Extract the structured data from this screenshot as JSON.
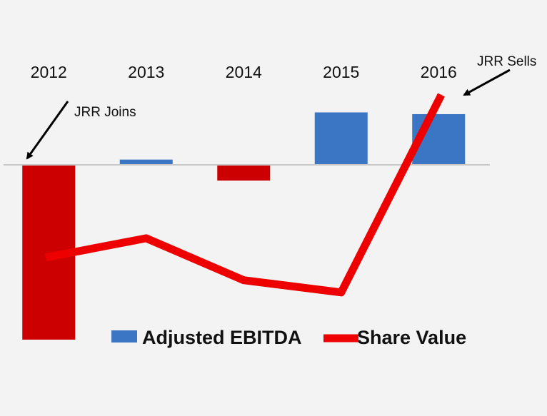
{
  "chart_data": {
    "type": "bar",
    "categories": [
      "2012",
      "2013",
      "2014",
      "2015",
      "2016"
    ],
    "series": [
      {
        "name": "Adjusted EBITDA",
        "chart_type": "bar",
        "values": [
          -10,
          0.3,
          -0.9,
          3.0,
          2.9
        ],
        "bar_colors": [
          "#cc0000",
          "#3a76c4",
          "#cc0000",
          "#3a76c4",
          "#3a76c4"
        ]
      },
      {
        "name": "Share Value",
        "chart_type": "line",
        "values": [
          -5.3,
          -4.2,
          -6.6,
          -7.3,
          4.0
        ],
        "color": "#ee0000"
      }
    ],
    "ylim": [
      -10,
      4
    ],
    "grid": false,
    "legend_position": "bottom",
    "annotations": [
      {
        "text": "JRR Joins",
        "category": "2012"
      },
      {
        "text": "JRR Sells",
        "category": "2016"
      }
    ],
    "colors": {
      "positive": "#3a76c4",
      "negative": "#cc0000",
      "line": "#ee0000",
      "baseline": "#c8c8c8",
      "arrow": "#000000"
    }
  }
}
